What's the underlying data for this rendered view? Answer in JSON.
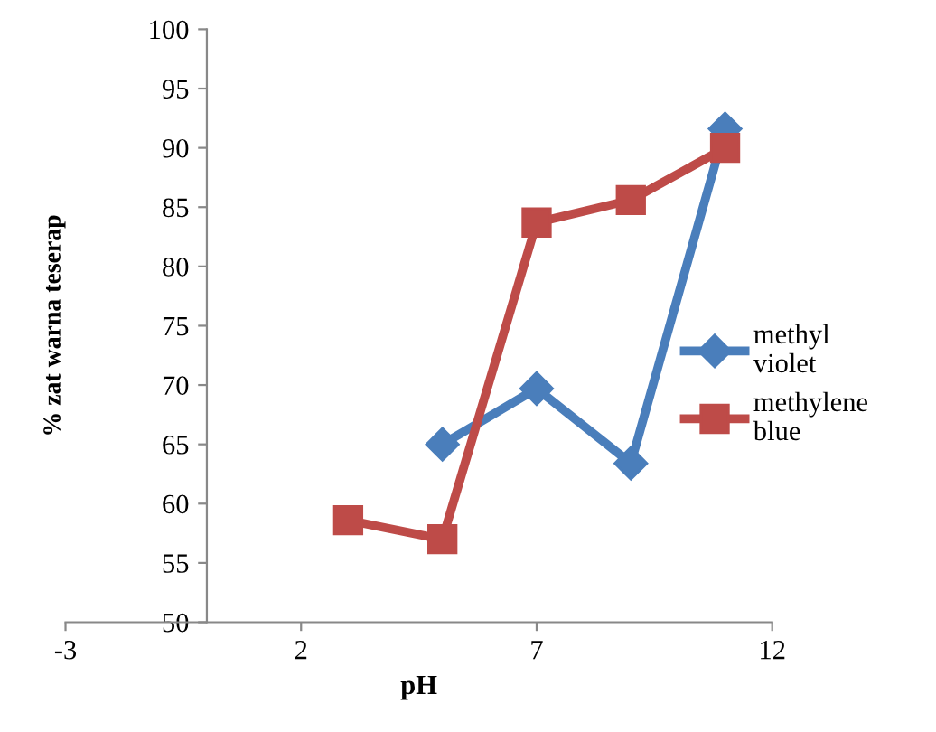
{
  "chart_data": {
    "type": "line",
    "xlabel": "pH",
    "ylabel": "% zat warna teserap",
    "xlim": [
      -3,
      12
    ],
    "xticks": [
      -3,
      2,
      7,
      12
    ],
    "ylim": [
      50,
      100
    ],
    "yticks": [
      50,
      55,
      60,
      65,
      70,
      75,
      80,
      85,
      90,
      95,
      100
    ],
    "legend": "right",
    "grid": false,
    "series": [
      {
        "name": "methyl\nviolet",
        "color": "#4a7ebb",
        "marker": "diamond",
        "x": [
          5,
          7,
          9,
          11
        ],
        "values": [
          65,
          69.7,
          63.4,
          91.6
        ]
      },
      {
        "name": "methylene\nblue",
        "color": "#be4b48",
        "marker": "square",
        "x": [
          3,
          5,
          7,
          9,
          11
        ],
        "values": [
          58.6,
          57.0,
          83.7,
          85.6,
          90.0
        ]
      }
    ]
  }
}
